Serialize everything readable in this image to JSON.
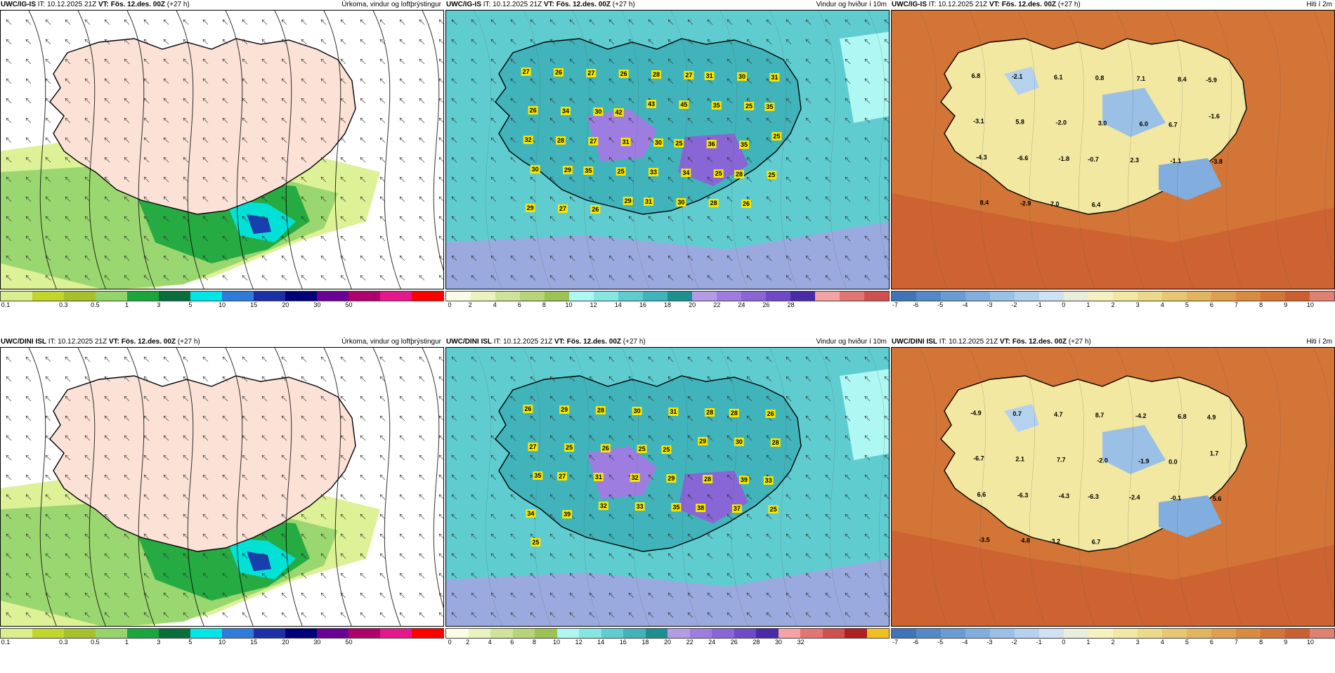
{
  "rows": [
    {
      "model": "UWC/IG-IS",
      "init_label": "IT:",
      "init": "10.12.2025 21Z",
      "valid_label": "VT:",
      "valid": "Fös. 12.des. 00Z",
      "lead": "(+27 h)",
      "panels": [
        {
          "title": "Úrkoma, vindur og loftþrýstingur",
          "colorbar": {
            "colors": [
              "#d9ef8b",
              "#c2d52a",
              "#a6c12b",
              "#94d46b",
              "#1aa53d",
              "#0a6d3c",
              "#00e5e5",
              "#2e7bdc",
              "#1a2fa8",
              "#00007a",
              "#6a0094",
              "#b0006e",
              "#e6178c",
              "#ff0000"
            ],
            "ticks": [
              "0.1",
              "0.3",
              "0.5",
              "1",
              "3",
              "5",
              "10",
              "15",
              "20",
              "30",
              "50"
            ]
          }
        },
        {
          "title": "Vindur og hviður í 10m",
          "colorbar": {
            "colors": [
              "#fbfce6",
              "#eaf3c0",
              "#cfe49a",
              "#b7d47a",
              "#9ac254",
              "#aef7f2",
              "#86e6e2",
              "#5fcdd0",
              "#40b4ba",
              "#1e8f91",
              "#b49be6",
              "#9d7ee0",
              "#8866d6",
              "#6f4ac8",
              "#4a2aa8",
              "#f4a3a3",
              "#e27474",
              "#d05050"
            ],
            "ticks": [
              "0",
              "2",
              "4",
              "6",
              "8",
              "10",
              "12",
              "14",
              "16",
              "18",
              "20",
              "22",
              "24",
              "26",
              "28"
            ]
          },
          "labels": [
            "27",
            "26",
            "27",
            "26",
            "28",
            "27",
            "31",
            "30",
            "31",
            "26",
            "34",
            "30",
            "42",
            "43",
            "45",
            "35",
            "25",
            "35",
            "32",
            "28",
            "27",
            "31",
            "30",
            "25",
            "36",
            "35",
            "25",
            "30",
            "29",
            "35",
            "25",
            "33",
            "34",
            "25",
            "28",
            "25",
            "29",
            "27",
            "26",
            "29",
            "31",
            "30",
            "28",
            "26"
          ]
        },
        {
          "title": "Hiti í 2m",
          "colorbar": {
            "colors": [
              "#3f74b9",
              "#5588c8",
              "#6a9bd4",
              "#81aede",
              "#9ac0e6",
              "#b4d2ee",
              "#cfe2f2",
              "#e8eedb",
              "#f6f2bf",
              "#f2e8a2",
              "#ecd98a",
              "#e7c772",
              "#e2b45d",
              "#dea04c",
              "#d98b40",
              "#d37536",
              "#cb5f2f",
              "#e08070"
            ],
            "ticks": [
              "-7",
              "-6",
              "-5",
              "-4",
              "-3",
              "-2",
              "-1",
              "0",
              "1",
              "2",
              "3",
              "4",
              "5",
              "6",
              "7",
              "8",
              "9",
              "10"
            ]
          },
          "labels": [
            "6.8",
            "-2.1",
            "6.1",
            "0.8",
            "7.1",
            "8.4",
            "-5.9",
            "-3.1",
            "5.8",
            "-2.0",
            "3.0",
            "6.0",
            "6.7",
            "-1.6",
            "-4.3",
            "-6.6",
            "-1.8",
            "-0.7",
            "2.3",
            "-1.1",
            "-3.8",
            "8.4",
            "-2.9",
            "7.0",
            "6.4"
          ]
        }
      ]
    },
    {
      "model": "UWC/DINI ISL",
      "init_label": "IT:",
      "init": "10.12.2025 21Z",
      "valid_label": "VT:",
      "valid": "Fös. 12.des. 00Z",
      "lead": "(+27 h)",
      "panels": [
        {
          "title": "Úrkoma, vindur og loftþrýstingur",
          "colorbar": {
            "colors": [
              "#d9ef8b",
              "#c2d52a",
              "#a6c12b",
              "#94d46b",
              "#1aa53d",
              "#0a6d3c",
              "#00e5e5",
              "#2e7bdc",
              "#1a2fa8",
              "#00007a",
              "#6a0094",
              "#b0006e",
              "#e6178c",
              "#ff0000"
            ],
            "ticks": [
              "0.1",
              "0.3",
              "0.5",
              "1",
              "3",
              "5",
              "10",
              "15",
              "20",
              "30",
              "50"
            ]
          }
        },
        {
          "title": "Vindur og hviður í 10m",
          "colorbar": {
            "colors": [
              "#fbfce6",
              "#eaf3c0",
              "#cfe49a",
              "#b7d47a",
              "#9ac254",
              "#aef7f2",
              "#86e6e2",
              "#5fcdd0",
              "#40b4ba",
              "#1e8f91",
              "#b49be6",
              "#9d7ee0",
              "#8866d6",
              "#6f4ac8",
              "#4a2aa8",
              "#f4a3a3",
              "#e27474",
              "#d05050",
              "#b02020",
              "#f0c020"
            ],
            "ticks": [
              "0",
              "2",
              "4",
              "6",
              "8",
              "10",
              "12",
              "14",
              "16",
              "18",
              "20",
              "22",
              "24",
              "26",
              "28",
              "30",
              "32"
            ]
          },
          "labels": [
            "26",
            "29",
            "28",
            "30",
            "31",
            "28",
            "28",
            "26",
            "27",
            "25",
            "26",
            "25",
            "25",
            "29",
            "30",
            "28",
            "35",
            "27",
            "31",
            "32",
            "29",
            "28",
            "39",
            "33",
            "34",
            "39",
            "32",
            "33",
            "35",
            "38",
            "37",
            "25",
            "25"
          ]
        },
        {
          "title": "Hiti í 2m",
          "colorbar": {
            "colors": [
              "#3f74b9",
              "#5588c8",
              "#6a9bd4",
              "#81aede",
              "#9ac0e6",
              "#b4d2ee",
              "#cfe2f2",
              "#e8eedb",
              "#f6f2bf",
              "#f2e8a2",
              "#ecd98a",
              "#e7c772",
              "#e2b45d",
              "#dea04c",
              "#d98b40",
              "#d37536",
              "#cb5f2f",
              "#e08070"
            ],
            "ticks": [
              "-7",
              "-6",
              "-5",
              "-4",
              "-3",
              "-2",
              "-1",
              "0",
              "1",
              "2",
              "3",
              "4",
              "5",
              "6",
              "7",
              "8",
              "9",
              "10"
            ]
          },
          "labels": [
            "-4.9",
            "0.7",
            "4.7",
            "8.7",
            "-4.2",
            "6.8",
            "4.9",
            "-6.7",
            "2.1",
            "7.7",
            "-2.0",
            "-1.9",
            "0.0",
            "1.7",
            "6.6",
            "-6.3",
            "-4.3",
            "-6.3",
            "-2.4",
            "-0.1",
            "5.6",
            "-3.5",
            "4.8",
            "-3.2",
            "6.7"
          ]
        }
      ]
    }
  ]
}
